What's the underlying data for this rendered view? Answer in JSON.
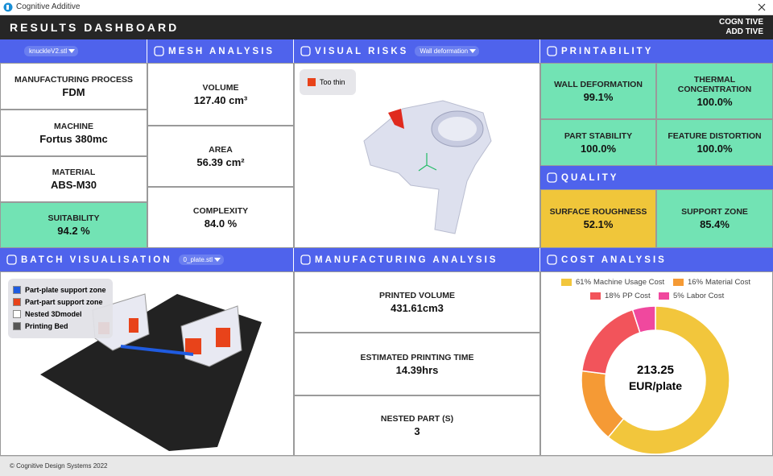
{
  "window": {
    "title": "Cognitive Additive"
  },
  "header": {
    "title": "RESULTS DASHBOARD",
    "logo": [
      "COGN TIVE",
      "ADD TIVE"
    ]
  },
  "part_panel": {
    "dropdown": "knuckleV2.stl",
    "items": [
      {
        "label": "MANUFACTURING PROCESS",
        "value": "FDM"
      },
      {
        "label": "MACHINE",
        "value": "Fortus 380mc"
      },
      {
        "label": "MATERIAL",
        "value": "ABS-M30"
      },
      {
        "label": "SUITABILITY",
        "value": "94.2 %"
      }
    ]
  },
  "mesh_analysis": {
    "title": "MESH ANALYSIS",
    "items": [
      {
        "label": "VOLUME",
        "value": "127.40 cm³"
      },
      {
        "label": "AREA",
        "value": "56.39 cm²"
      },
      {
        "label": "COMPLEXITY",
        "value": "84.0 %"
      }
    ]
  },
  "visual_risks": {
    "title": "VISUAL RISKS",
    "dropdown": "Wall deformation",
    "legend": "Too thin"
  },
  "printability": {
    "title": "PRINTABILITY",
    "items": [
      {
        "label": "WALL DEFORMATION",
        "value": "99.1%"
      },
      {
        "label": "THERMAL CONCENTRATION",
        "value": "100.0%"
      },
      {
        "label": "PART STABILITY",
        "value": "100.0%"
      },
      {
        "label": "FEATURE DISTORTION",
        "value": "100.0%"
      }
    ]
  },
  "quality": {
    "title": "QUALITY",
    "items": [
      {
        "label": "SURFACE ROUGHNESS",
        "value": "52.1%"
      },
      {
        "label": "SUPPORT ZONE",
        "value": "85.4%"
      }
    ]
  },
  "batch": {
    "title": "BATCH VISUALISATION",
    "dropdown": "0_plate.stl",
    "legend": [
      {
        "label": "Part-plate support zone",
        "color": "#1f5be0"
      },
      {
        "label": "Part-part support zone",
        "color": "#e8431a"
      },
      {
        "label": "Nested 3Dmodel",
        "color": "#ffffff"
      },
      {
        "label": "Printing Bed",
        "color": "#555555"
      }
    ]
  },
  "manufacturing_analysis": {
    "title": "MANUFACTURING ANALYSIS",
    "items": [
      {
        "label": "PRINTED VOLUME",
        "value": "431.61cm3"
      },
      {
        "label": "ESTIMATED PRINTING TIME",
        "value": "14.39hrs"
      },
      {
        "label": "NESTED PART (S)",
        "value": "3"
      }
    ]
  },
  "cost_analysis": {
    "title": "COST ANALYSIS",
    "total": 213.25,
    "unit": "EUR/plate",
    "segments": [
      {
        "name": "Machine Usage Cost",
        "value": 61,
        "value_label": "61%",
        "color": "#f2c63c"
      },
      {
        "name": "Material Cost",
        "value": 16,
        "value_label": "16%",
        "color": "#f59a35"
      },
      {
        "name": "PP Cost",
        "value": 18,
        "value_label": "18%",
        "color": "#f2545b"
      },
      {
        "name": "Labor Cost",
        "value": 5,
        "value_label": "5%",
        "color": "#f0489e"
      }
    ]
  },
  "footer": "© Cognitive Design Systems 2022"
}
